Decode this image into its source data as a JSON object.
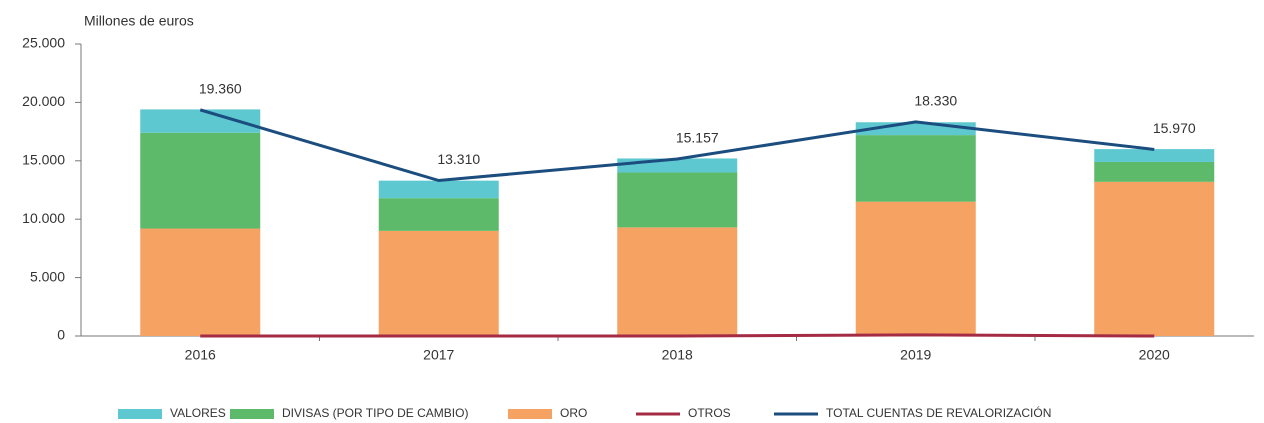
{
  "chart_data": {
    "type": "bar",
    "y_label": "Millones de euros",
    "categories": [
      "2016",
      "2017",
      "2018",
      "2019",
      "2020"
    ],
    "stacked": true,
    "series": [
      {
        "name": "VALORES",
        "color": "#5ec8d1",
        "kind": "bar",
        "values": [
          2000,
          1500,
          1200,
          1100,
          1100
        ]
      },
      {
        "name": "DIVISAS (POR TIPO DE CAMBIO)",
        "color": "#5dba6a",
        "kind": "bar",
        "values": [
          8200,
          2800,
          4700,
          5700,
          1700
        ]
      },
      {
        "name": "ORO",
        "color": "#f5a263",
        "kind": "bar",
        "values": [
          9200,
          9000,
          9300,
          11500,
          13200
        ]
      },
      {
        "name": "OTROS",
        "color": "#a52b45",
        "kind": "line",
        "values": [
          0,
          0,
          0,
          100,
          0
        ]
      },
      {
        "name": "TOTAL CUENTAS DE REVALORIZACIÓN",
        "color": "#1b4d7e",
        "kind": "line",
        "values": [
          19360,
          13310,
          15157,
          18330,
          15970
        ],
        "value_labels": [
          "19.360",
          "13.310",
          "15.157",
          "18.330",
          "15.970"
        ]
      }
    ],
    "stack_order": [
      2,
      1,
      0
    ],
    "ylim": [
      0,
      25000
    ],
    "yticks": [
      0,
      {
        "value": 5000,
        "label": "5.000"
      },
      {
        "value": 10000,
        "label": "10.000"
      },
      {
        "value": 15000,
        "label": "15.000"
      },
      {
        "value": 20000,
        "label": "20.000"
      },
      {
        "value": 25000,
        "label": "25.000"
      }
    ],
    "grid": false,
    "legend": "bottom"
  }
}
